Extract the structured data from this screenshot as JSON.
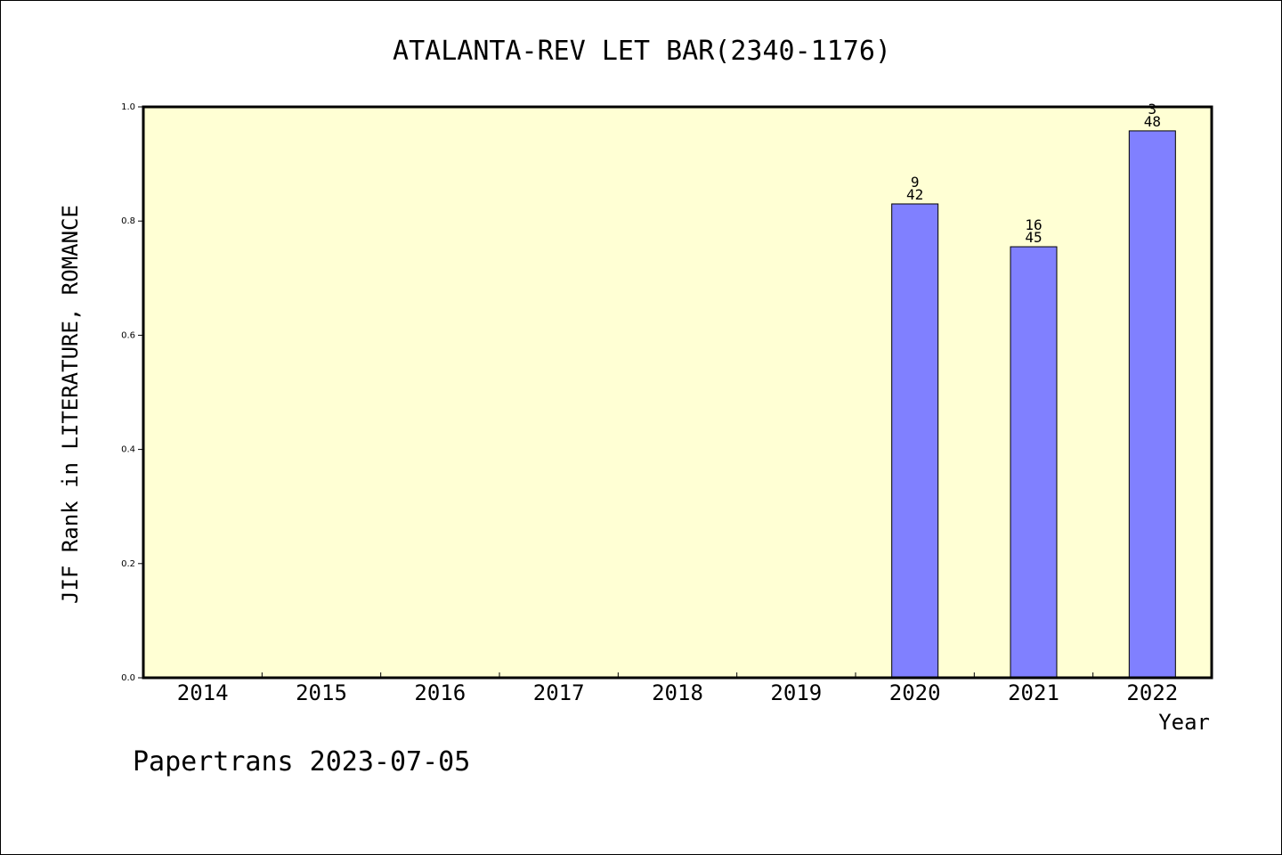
{
  "chart_data": {
    "type": "bar",
    "title": "ATALANTA-REV LET BAR(2340-1176)",
    "xlabel": "Year",
    "ylabel": "JIF Rank in LITERATURE, ROMANCE",
    "categories": [
      "2014",
      "2015",
      "2016",
      "2017",
      "2018",
      "2019",
      "2020",
      "2021",
      "2022"
    ],
    "values": [
      null,
      null,
      null,
      null,
      null,
      null,
      0.83,
      0.755,
      0.958
    ],
    "bar_labels": [
      null,
      null,
      null,
      null,
      null,
      null,
      {
        "rank": "9",
        "total": "42"
      },
      {
        "rank": "16",
        "total": "45"
      },
      {
        "rank": "3",
        "total": "48"
      }
    ],
    "ylim": [
      0,
      1
    ],
    "yticks": [
      "0.0",
      "0.2",
      "0.4",
      "0.6",
      "0.8",
      "1.0"
    ],
    "grid": false,
    "legend": "none",
    "colors": {
      "plot_background": "#ffffd4",
      "bar_fill": "#8080ff",
      "bar_stroke": "#000000",
      "axis": "#000000"
    }
  },
  "footer": "Papertrans 2023-07-05"
}
